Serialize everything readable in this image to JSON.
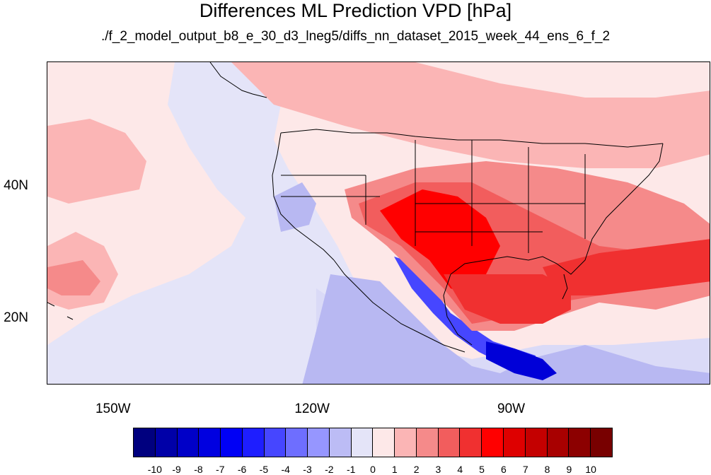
{
  "title": "Differences ML Prediction VPD [hPa]",
  "subtitle": "./f_2_model_output_b8_e_30_d3_lneg5/diffs_nn_dataset_2015_week_44_ens_6_f_2",
  "map": {
    "lon_range": [
      -160,
      -60
    ],
    "lat_range": [
      10,
      59
    ],
    "x_ticks": [
      {
        "lon": -150,
        "label": "150W"
      },
      {
        "lon": -120,
        "label": "120W"
      },
      {
        "lon": -90,
        "label": "90W"
      }
    ],
    "y_ticks": [
      {
        "lat": 40,
        "label": "40N"
      },
      {
        "lat": 20,
        "label": "20N"
      }
    ]
  },
  "colorbar": {
    "labels": [
      "-10",
      "-9",
      "-8",
      "-7",
      "-6",
      "-5",
      "-4",
      "-3",
      "-2",
      "-1",
      "0",
      "1",
      "2",
      "3",
      "4",
      "5",
      "6",
      "7",
      "8",
      "9",
      "10"
    ],
    "colors": [
      "#00007f",
      "#0000a8",
      "#0000c8",
      "#0000e0",
      "#0000f5",
      "#1e1eff",
      "#4646ff",
      "#6e6eff",
      "#9696ff",
      "#bcbcf5",
      "#e4e4f8",
      "#fde8e8",
      "#fbb5b5",
      "#f58a8a",
      "#f25d5d",
      "#f03030",
      "#ff0000",
      "#de0000",
      "#c40000",
      "#a80000",
      "#8c0000",
      "#780000"
    ]
  }
}
